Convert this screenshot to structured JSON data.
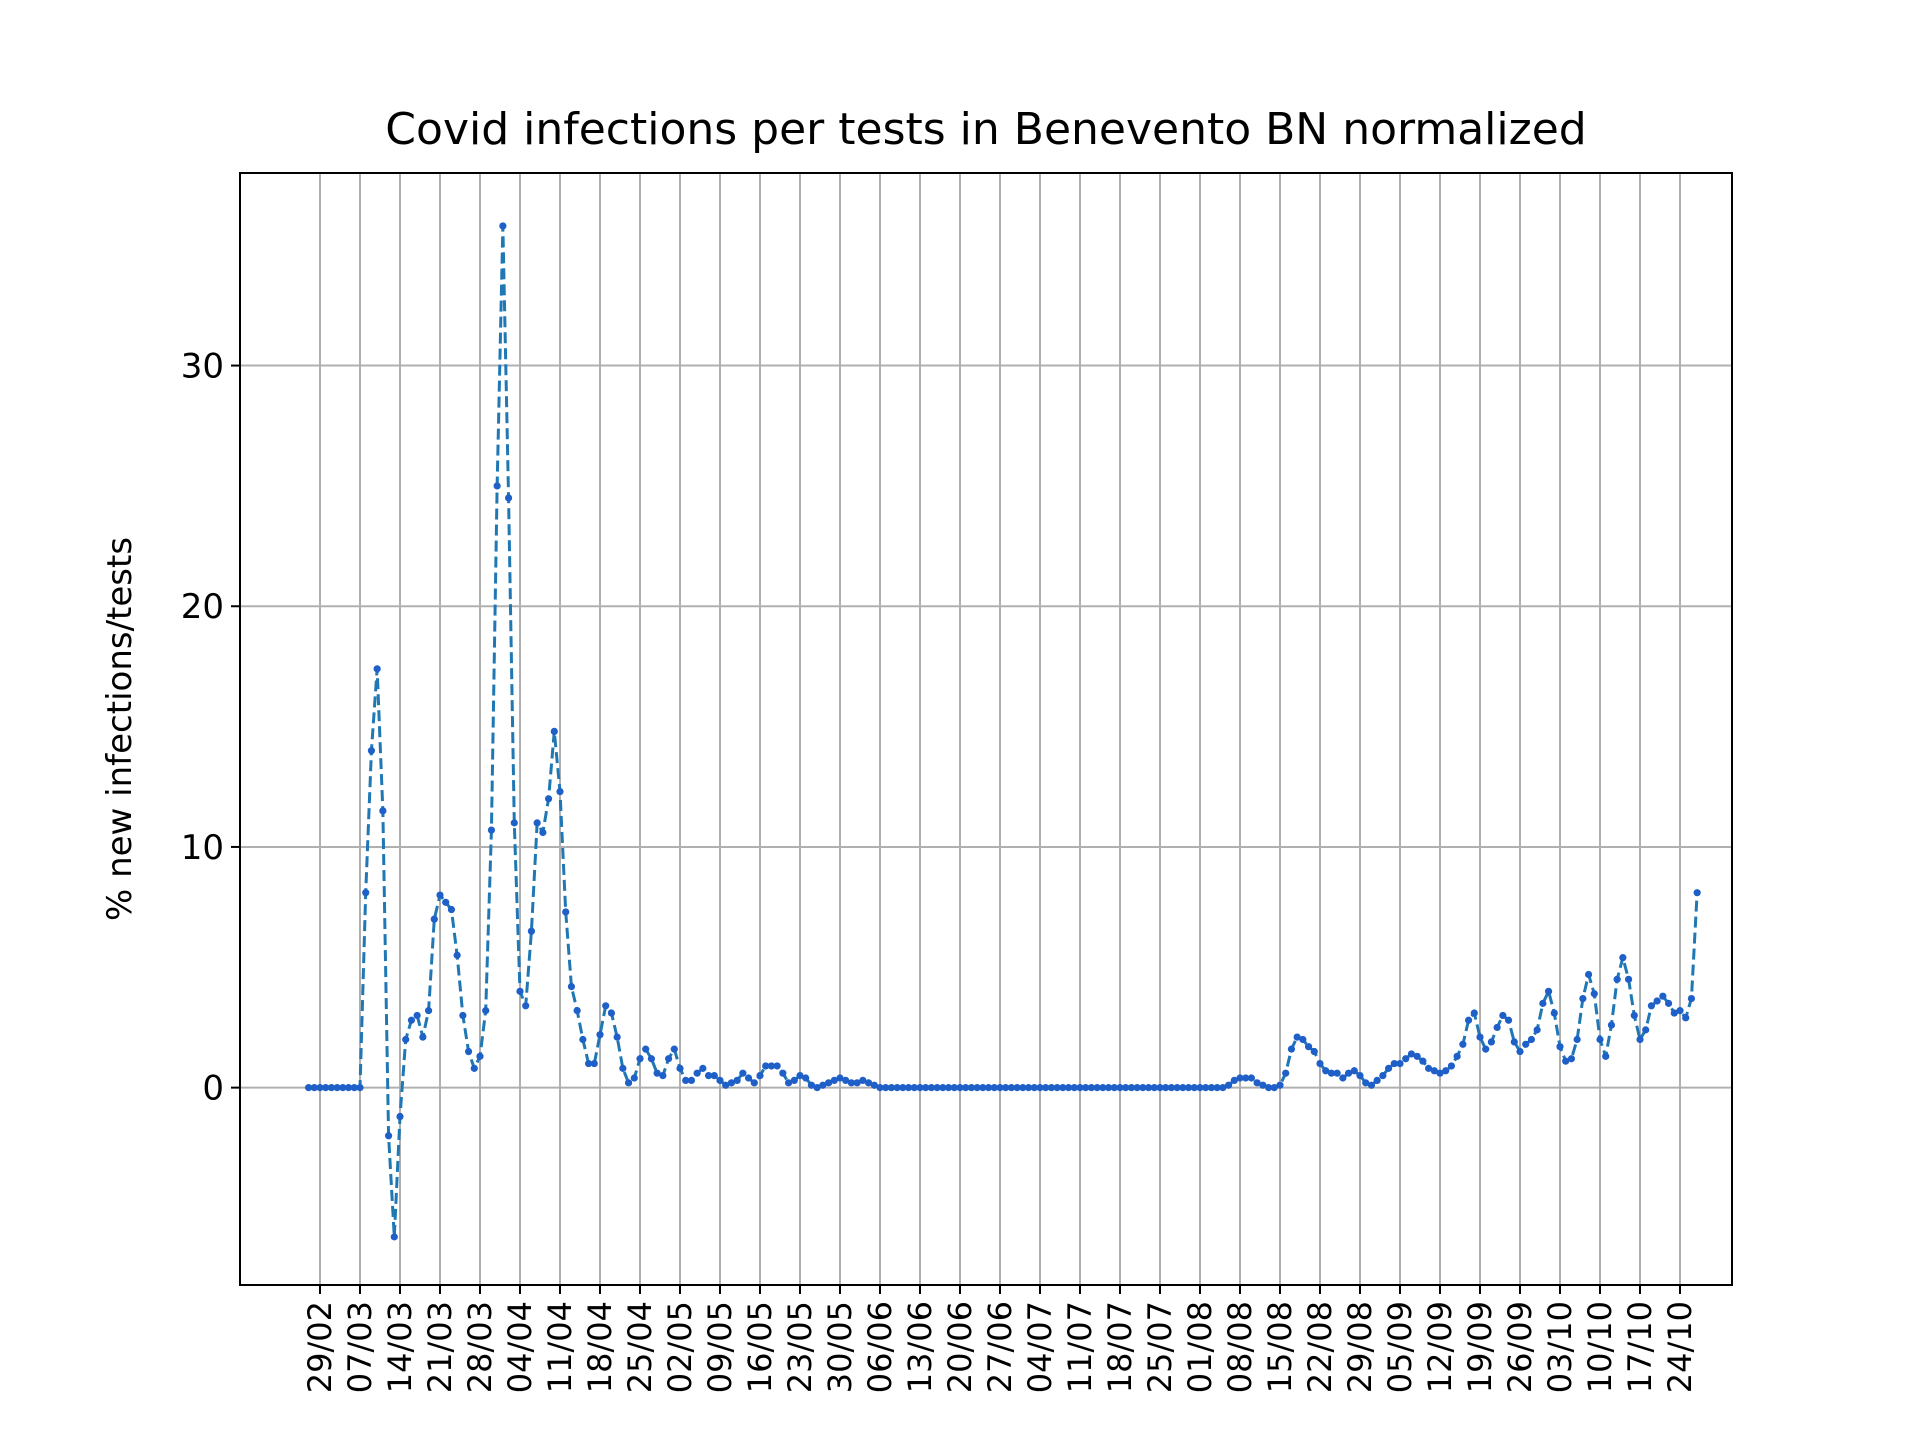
{
  "chart_data": {
    "type": "line",
    "title": "Covid infections per tests in Benevento BN normalized",
    "xlabel": "",
    "ylabel": "% new infections/tests",
    "x_tick_labels": [
      "29/02",
      "07/03",
      "14/03",
      "21/03",
      "28/03",
      "04/04",
      "11/04",
      "18/04",
      "25/04",
      "02/05",
      "09/05",
      "16/05",
      "23/05",
      "30/05",
      "06/06",
      "13/06",
      "20/06",
      "27/06",
      "04/07",
      "11/07",
      "18/07",
      "25/07",
      "01/08",
      "08/08",
      "15/08",
      "22/08",
      "29/08",
      "05/09",
      "12/09",
      "19/09",
      "26/09",
      "03/10",
      "10/10",
      "17/10",
      "24/10"
    ],
    "y_ticks": [
      0,
      10,
      20,
      30
    ],
    "ylim": [
      -8.2,
      38
    ],
    "grid": true,
    "line_color": "#1f77b4",
    "marker_color": "#1f5fc8",
    "line_style": "dashed",
    "marker": "dot",
    "series": [
      {
        "x_start": "27/02",
        "values": [
          0,
          0,
          0,
          0,
          0,
          0,
          0,
          0,
          0,
          0,
          8.1,
          14,
          17.4,
          11.5,
          -2,
          -6.2,
          -1.2,
          2,
          2.8,
          3,
          2.1,
          3.2,
          7,
          8,
          7.7,
          7.4,
          5.5,
          3,
          1.5,
          0.8,
          1.3,
          3.2,
          10.7,
          25,
          35.8,
          24.5,
          11,
          4,
          3.4,
          6.5,
          11,
          10.6,
          12,
          14.8,
          12.3,
          7.3,
          4.2,
          3.2,
          2,
          1,
          1,
          2.2,
          3.4,
          3.1,
          2.1,
          0.8,
          0.2,
          0.4,
          1.2,
          1.6,
          1.2,
          0.6,
          0.5,
          1.2,
          1.6,
          0.8,
          0.3,
          0.3,
          0.6,
          0.8,
          0.5,
          0.5,
          0.3,
          0.1,
          0.2,
          0.3,
          0.6,
          0.4,
          0.2,
          0.5,
          0.9,
          0.9,
          0.9,
          0.6,
          0.2,
          0.3,
          0.5,
          0.4,
          0.1,
          0,
          0.1,
          0.2,
          0.3,
          0.4,
          0.3,
          0.2,
          0.2,
          0.3,
          0.2,
          0.1,
          0,
          0,
          0,
          0,
          0,
          0,
          0,
          0,
          0,
          0,
          0,
          0,
          0,
          0,
          0,
          0,
          0,
          0,
          0,
          0,
          0,
          0,
          0,
          0,
          0,
          0,
          0,
          0,
          0,
          0,
          0,
          0,
          0,
          0,
          0,
          0,
          0,
          0,
          0,
          0,
          0,
          0,
          0,
          0,
          0,
          0,
          0,
          0,
          0,
          0,
          0,
          0,
          0,
          0,
          0,
          0,
          0,
          0,
          0,
          0,
          0,
          0.1,
          0.3,
          0.4,
          0.4,
          0.4,
          0.2,
          0.1,
          0,
          0,
          0.1,
          0.6,
          1.6,
          2.1,
          2,
          1.7,
          1.5,
          1,
          0.7,
          0.6,
          0.6,
          0.4,
          0.6,
          0.7,
          0.5,
          0.2,
          0.1,
          0.3,
          0.5,
          0.8,
          1,
          1,
          1.2,
          1.4,
          1.3,
          1.1,
          0.8,
          0.7,
          0.6,
          0.7,
          0.9,
          1.3,
          1.8,
          2.8,
          3.1,
          2.1,
          1.6,
          1.9,
          2.5,
          3,
          2.8,
          1.9,
          1.5,
          1.8,
          2,
          2.4,
          3.5,
          4,
          3.1,
          1.7,
          1.1,
          1.2,
          2,
          3.7,
          4.7,
          3.9,
          2,
          1.3,
          2.6,
          4.5,
          5.4,
          4.5,
          3,
          2,
          2.4,
          3.4,
          3.6,
          3.8,
          3.5,
          3.1,
          3.2,
          2.9,
          3.7,
          8.1
        ]
      }
    ]
  }
}
